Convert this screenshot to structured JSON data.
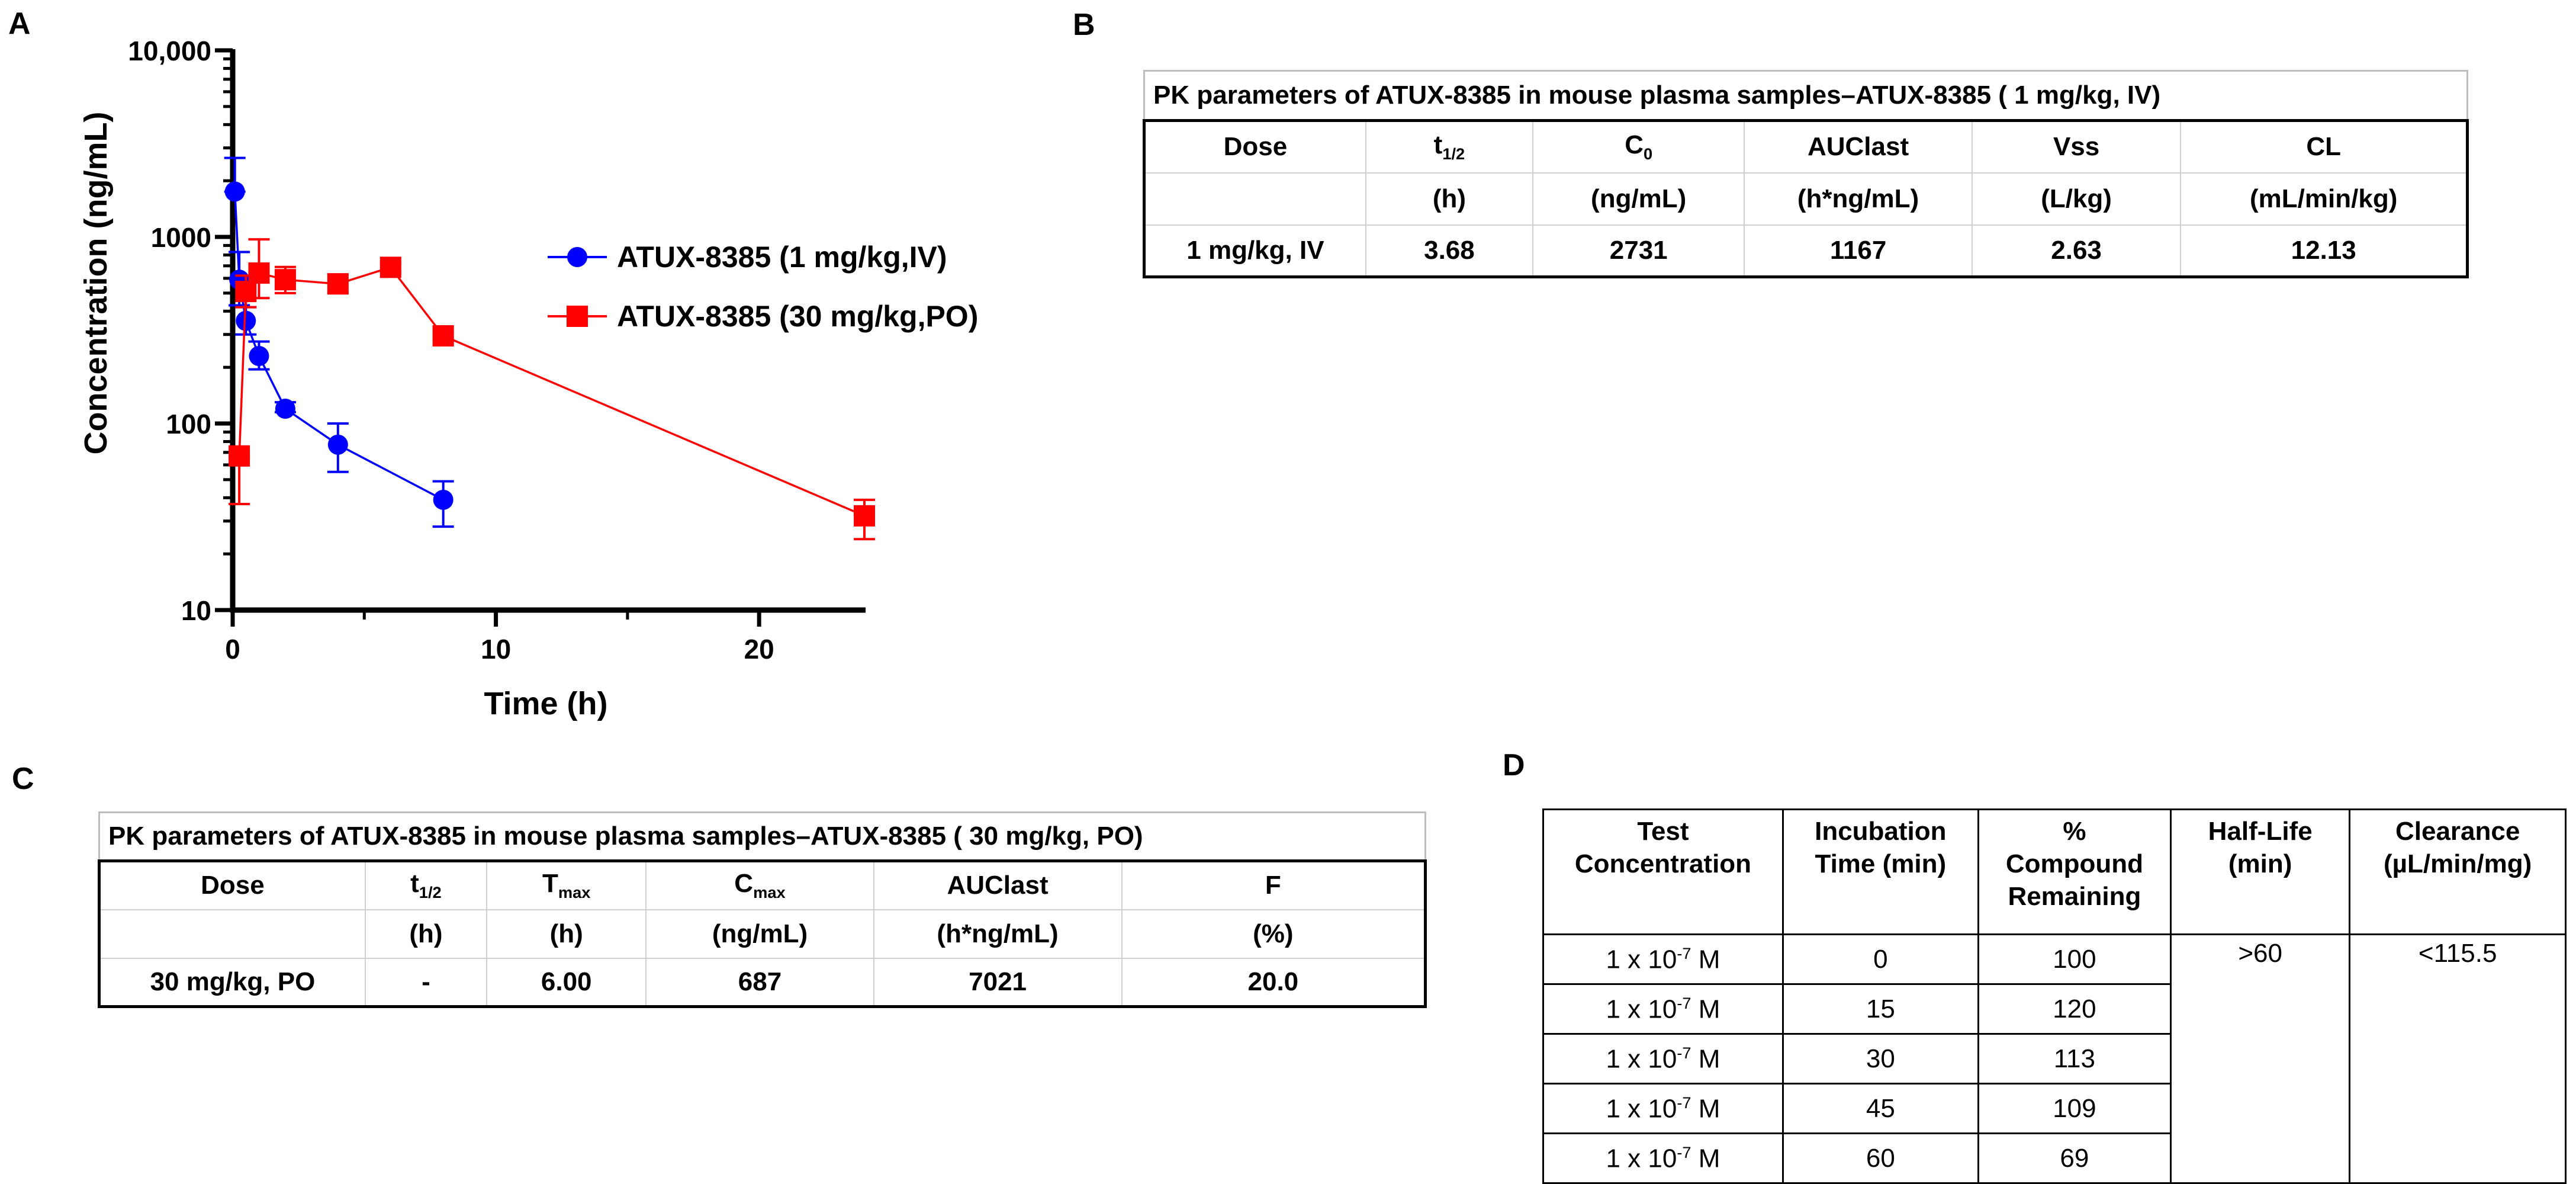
{
  "panels": {
    "a": "A",
    "b": "B",
    "c": "C",
    "d": "D"
  },
  "chart_data": {
    "type": "line",
    "xlabel": "Time (h)",
    "ylabel": "Concentration (ng/mL)",
    "x_scale": "linear",
    "y_scale": "log",
    "xlim": [
      0,
      24
    ],
    "ylim": [
      10,
      10000
    ],
    "x_ticks": [
      0,
      10,
      20
    ],
    "x_tick_labels": [
      "0",
      "10",
      "20"
    ],
    "y_ticks": [
      10,
      100,
      1000,
      10000
    ],
    "y_tick_labels": [
      "10",
      "100",
      "1000",
      "10,000"
    ],
    "legend_position": "right",
    "series": [
      {
        "name": "ATUX-8385 (1 mg/kg,IV)",
        "color": "#0000ff",
        "marker": "circle",
        "x": [
          0.083,
          0.25,
          0.5,
          1,
          2,
          4,
          8
        ],
        "y": [
          1750,
          590,
          355,
          230,
          120,
          77,
          39
        ],
        "err_high": [
          2650,
          830,
          420,
          275,
          130,
          100,
          49
        ],
        "err_low": [
          1750,
          430,
          300,
          195,
          115,
          55,
          28
        ]
      },
      {
        "name": "ATUX-8385 (30 mg/kg,PO)",
        "color": "#ff0000",
        "marker": "square",
        "x": [
          0.25,
          0.5,
          1,
          2,
          4,
          6,
          8,
          24
        ],
        "y": [
          67,
          510,
          640,
          590,
          560,
          687,
          295,
          32
        ],
        "err_high": [
          67,
          620,
          970,
          690,
          630,
          730,
          310,
          39
        ],
        "err_low": [
          37,
          420,
          470,
          500,
          500,
          650,
          280,
          24
        ]
      }
    ]
  },
  "table_b": {
    "caption": "PK parameters of ATUX-8385 in mouse plasma samples–ATUX-8385 ( 1 mg/kg, IV)",
    "headers": [
      {
        "main": "Dose",
        "sub": ""
      },
      {
        "main": "t",
        "sub": "1/2"
      },
      {
        "main": "C",
        "sub": "0"
      },
      {
        "main": "AUClast",
        "sub": ""
      },
      {
        "main": "Vss",
        "sub": ""
      },
      {
        "main": "CL",
        "sub": ""
      }
    ],
    "units": [
      "",
      "(h)",
      "(ng/mL)",
      "(h*ng/mL)",
      "(L/kg)",
      "(mL/min/kg)"
    ],
    "row": [
      "1 mg/kg, IV",
      "3.68",
      "2731",
      "1167",
      "2.63",
      "12.13"
    ]
  },
  "table_c": {
    "caption": "PK parameters of ATUX-8385 in mouse plasma samples–ATUX-8385 ( 30 mg/kg, PO)",
    "headers": [
      {
        "main": "Dose",
        "sub": ""
      },
      {
        "main": "t",
        "sub": "1/2"
      },
      {
        "main": "T",
        "sub": "max"
      },
      {
        "main": "C",
        "sub": "max"
      },
      {
        "main": "AUClast",
        "sub": ""
      },
      {
        "main": "F",
        "sub": ""
      }
    ],
    "units": [
      "",
      "(h)",
      "(h)",
      "(ng/mL)",
      "(h*ng/mL)",
      "(%)"
    ],
    "row": [
      "30 mg/kg, PO",
      "-",
      "6.00",
      "687",
      "7021",
      "20.0"
    ]
  },
  "table_d": {
    "headers": [
      [
        "Test",
        "Concentration"
      ],
      [
        "Incubation",
        "Time (min)"
      ],
      [
        "%",
        "Compound",
        "Remaining"
      ],
      [
        "Half-Life",
        "(min)"
      ],
      [
        "Clearance",
        "(µL/min/mg)"
      ]
    ],
    "conc_base": "1 x 10",
    "conc_exp": "-7",
    "conc_unit": " M",
    "times": [
      "0",
      "15",
      "30",
      "45",
      "60"
    ],
    "remaining": [
      "100",
      "120",
      "113",
      "109",
      "69"
    ],
    "half_life": ">60",
    "clearance": "<115.5"
  }
}
